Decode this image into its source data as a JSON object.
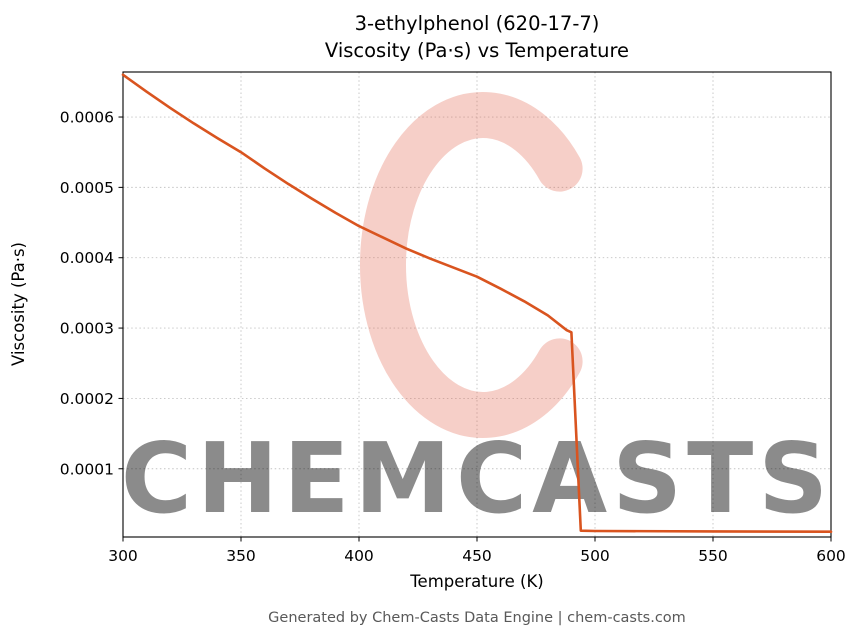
{
  "title_line1": "3-ethylphenol (620-17-7)",
  "title_line2": "Viscosity (Pa·s) vs Temperature",
  "footer_credit": "Generated by Chem-Casts Data Engine | chem-casts.com",
  "watermark": {
    "text": "CHEMCASTS",
    "color": "#e2604a"
  },
  "chart_data": {
    "type": "line",
    "title": "3-ethylphenol (620-17-7) — Viscosity (Pa·s) vs Temperature",
    "xlabel": "Temperature (K)",
    "ylabel": "Viscosity (Pa·s)",
    "xlim": [
      300,
      600
    ],
    "ylim": [
      3e-06,
      0.000664
    ],
    "grid": true,
    "legend": "none",
    "line_color": "#d9541f",
    "x_tick_values": [
      300,
      350,
      400,
      450,
      500,
      550,
      600
    ],
    "x_tick_labels": [
      "300",
      "350",
      "400",
      "450",
      "500",
      "550",
      "600"
    ],
    "y_tick_values": [
      0.0001,
      0.0002,
      0.0003,
      0.0004,
      0.0005,
      0.0006
    ],
    "y_tick_labels": [
      "0.0001",
      "0.0002",
      "0.0003",
      "0.0004",
      "0.0005",
      "0.0006"
    ],
    "series": [
      {
        "name": "Viscosity (Pa·s)",
        "points": [
          [
            300,
            0.00066
          ],
          [
            310,
            0.000636
          ],
          [
            320,
            0.000613
          ],
          [
            330,
            0.000591
          ],
          [
            340,
            0.00057
          ],
          [
            350,
            0.00055
          ],
          [
            360,
            0.000527
          ],
          [
            370,
            0.000505
          ],
          [
            380,
            0.000484
          ],
          [
            390,
            0.000464
          ],
          [
            400,
            0.000445
          ],
          [
            410,
            0.000429
          ],
          [
            420,
            0.000413
          ],
          [
            430,
            0.000399
          ],
          [
            440,
            0.000386
          ],
          [
            450,
            0.000373
          ],
          [
            460,
            0.000356
          ],
          [
            470,
            0.000338
          ],
          [
            480,
            0.000318
          ],
          [
            488,
            0.000297
          ],
          [
            490,
            0.000294
          ],
          [
            494,
            1.2e-05
          ],
          [
            500,
            1.15e-05
          ],
          [
            550,
            1.1e-05
          ],
          [
            600,
            1.05e-05
          ]
        ]
      }
    ]
  }
}
